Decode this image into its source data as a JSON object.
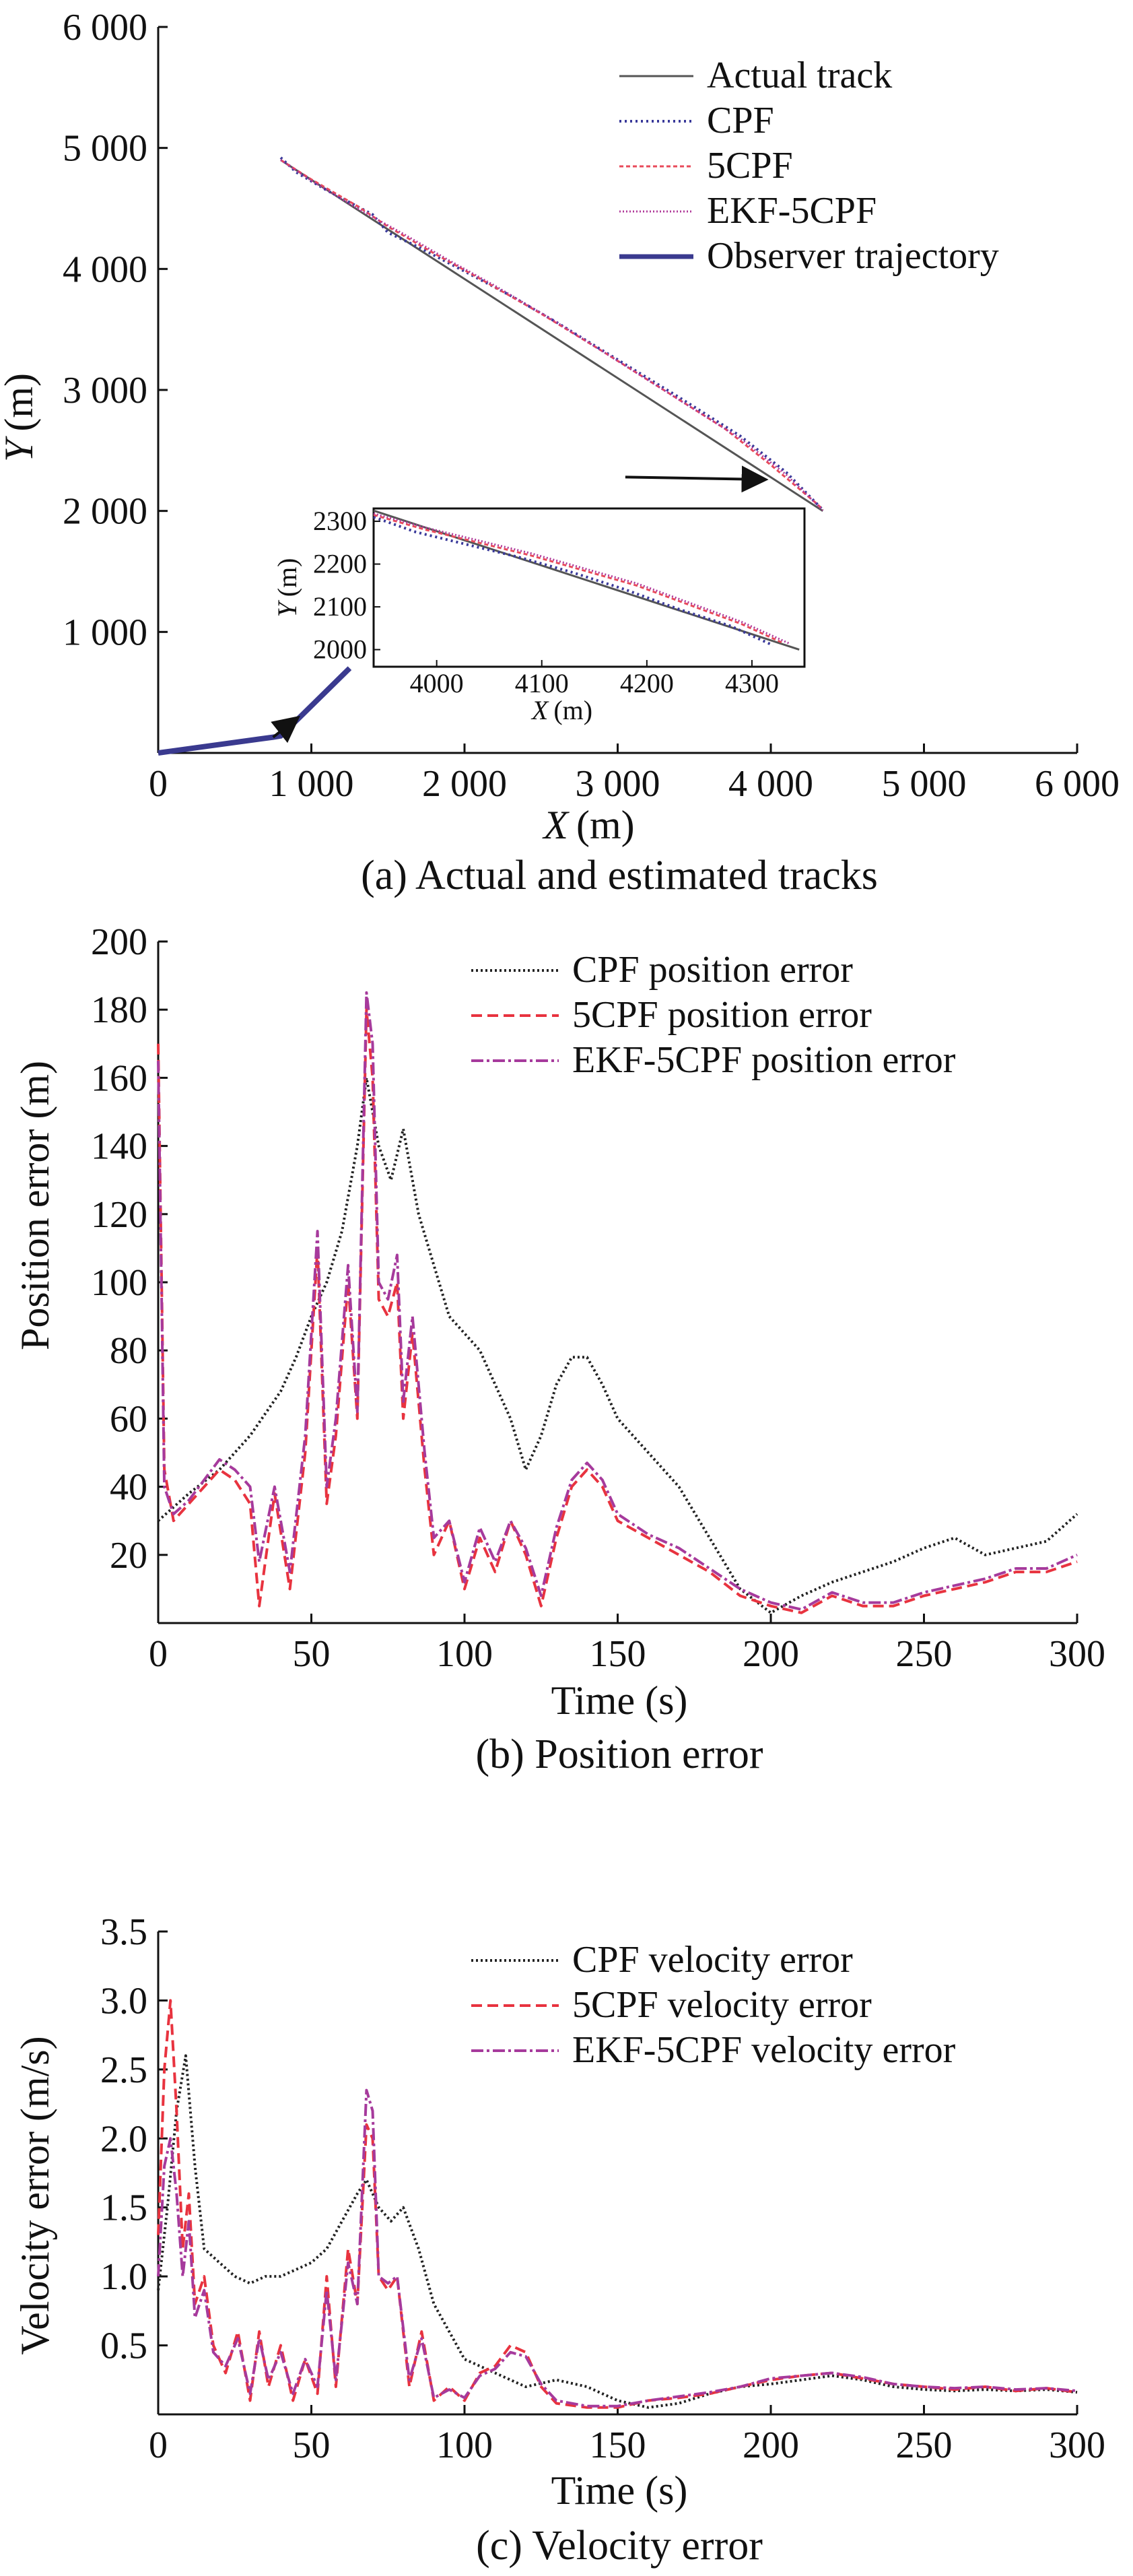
{
  "figure": {
    "panels": [
      "a",
      "b",
      "c"
    ]
  },
  "chart_data": [
    {
      "type": "line",
      "caption": "(a) Actual and estimated tracks",
      "xlabel_var": "X",
      "xlabel_unit": "(m)",
      "ylabel_var": "Y",
      "ylabel_unit": "(m)",
      "xlim": [
        0,
        6000
      ],
      "ylim": [
        0,
        6000
      ],
      "xticks": [
        0,
        1000,
        2000,
        3000,
        4000,
        5000,
        6000
      ],
      "yticks": [
        1000,
        2000,
        3000,
        4000,
        5000,
        6000
      ],
      "xtick_labels": [
        "0",
        "1 000",
        "2 000",
        "3 000",
        "4 000",
        "5 000",
        "6 000"
      ],
      "ytick_labels": [
        "1 000",
        "2 000",
        "3 000",
        "4 000",
        "5 000",
        "6 000"
      ],
      "legend": [
        "Actual track",
        "CPF",
        "5CPF",
        "EKF-5CPF",
        "Observer trajectory"
      ],
      "colors": {
        "actual": "#555555",
        "cpf": "#3a3a9a",
        "fivecpf": "#e84a5a",
        "ekf5cpf": "#b03a9a",
        "observer": "#3a3a8f"
      },
      "series": [
        {
          "name": "Actual track",
          "x": [
            800,
            4340
          ],
          "y": [
            4900,
            2000
          ]
        },
        {
          "name": "CPF",
          "x": [
            800,
            900,
            1100,
            1400,
            1500,
            1700,
            2000,
            2300,
            2600,
            3000,
            3400,
            3800,
            4100,
            4300,
            4340
          ],
          "y": [
            4920,
            4800,
            4650,
            4450,
            4300,
            4180,
            3980,
            3780,
            3560,
            3250,
            2940,
            2620,
            2320,
            2060,
            2010
          ]
        },
        {
          "name": "5CPF",
          "x": [
            800,
            1000,
            1300,
            1500,
            1800,
            2100,
            2500,
            2900,
            3300,
            3700,
            4000,
            4300,
            4340
          ],
          "y": [
            4900,
            4740,
            4520,
            4350,
            4130,
            3920,
            3630,
            3320,
            3000,
            2680,
            2380,
            2060,
            2010
          ]
        },
        {
          "name": "EKF-5CPF",
          "x": [
            800,
            1000,
            1300,
            1600,
            1900,
            2200,
            2600,
            3000,
            3400,
            3800,
            4100,
            4340
          ],
          "y": [
            4900,
            4730,
            4500,
            4290,
            4070,
            3860,
            3560,
            3240,
            2920,
            2600,
            2300,
            2005
          ]
        },
        {
          "name": "Observer trajectory",
          "x": [
            0,
            750,
            800,
            1250
          ],
          "y": [
            0,
            130,
            140,
            700
          ]
        }
      ],
      "inset": {
        "xlim": [
          3940,
          4350
        ],
        "ylim": [
          1960,
          2330
        ],
        "xticks": [
          4000,
          4100,
          4200,
          4300
        ],
        "yticks": [
          2000,
          2100,
          2200,
          2300
        ],
        "xtick_labels": [
          "4000",
          "4100",
          "4200",
          "4300"
        ],
        "ytick_labels": [
          "2000",
          "2100",
          "2200",
          "2300"
        ],
        "xlabel_var": "X",
        "xlabel_unit": "(m)",
        "ylabel_var": "Y",
        "ylabel_unit": "(m)",
        "series": [
          {
            "name": "Actual track",
            "x": [
              3940,
              4345
            ],
            "y": [
              2325,
              2000
            ]
          },
          {
            "name": "CPF",
            "x": [
              3940,
              3980,
              4030,
              4080,
              4130,
              4180,
              4230,
              4280,
              4320
            ],
            "y": [
              2310,
              2275,
              2245,
              2215,
              2180,
              2140,
              2095,
              2055,
              2010
            ]
          },
          {
            "name": "5CPF",
            "x": [
              3940,
              3990,
              4040,
              4090,
              4140,
              4190,
              4240,
              4290,
              4330
            ],
            "y": [
              2315,
              2280,
              2250,
              2220,
              2185,
              2150,
              2105,
              2060,
              2015
            ]
          },
          {
            "name": "EKF-5CPF",
            "x": [
              3940,
              3990,
              4040,
              4090,
              4140,
              4190,
              4240,
              4290,
              4335
            ],
            "y": [
              2318,
              2285,
              2255,
              2225,
              2190,
              2155,
              2110,
              2065,
              2015
            ]
          }
        ]
      },
      "annotations": [
        {
          "kind": "arrow",
          "from": [
            3050,
            2280
          ],
          "to": [
            3950,
            2260
          ]
        },
        {
          "kind": "arrow",
          "from": [
            750,
            130
          ],
          "to": [
            900,
            280
          ]
        }
      ]
    },
    {
      "type": "line",
      "caption": "(b) Position error",
      "xlabel": "Time (s)",
      "ylabel": "Position error (m)",
      "xlim": [
        0,
        300
      ],
      "ylim": [
        0,
        200
      ],
      "xticks": [
        0,
        50,
        100,
        150,
        200,
        250,
        300
      ],
      "yticks": [
        20,
        40,
        60,
        80,
        100,
        120,
        140,
        160,
        180,
        200
      ],
      "legend": [
        "CPF position error",
        "5CPF position error",
        "EKF-5CPF position error"
      ],
      "colors": {
        "cpf": "#222222",
        "fivecpf": "#e8333f",
        "ekf5cpf": "#a63a9c"
      },
      "series": [
        {
          "name": "CPF position error",
          "x": [
            0,
            10,
            20,
            30,
            40,
            45,
            50,
            55,
            60,
            65,
            68,
            72,
            76,
            80,
            85,
            90,
            95,
            100,
            105,
            110,
            115,
            120,
            125,
            130,
            135,
            140,
            145,
            150,
            160,
            170,
            180,
            190,
            200,
            210,
            220,
            230,
            240,
            250,
            260,
            270,
            280,
            290,
            300
          ],
          "y": [
            30,
            38,
            45,
            55,
            68,
            78,
            90,
            100,
            115,
            140,
            160,
            140,
            130,
            145,
            120,
            105,
            90,
            85,
            80,
            70,
            60,
            45,
            55,
            70,
            78,
            78,
            70,
            60,
            50,
            40,
            25,
            10,
            3,
            8,
            12,
            15,
            18,
            22,
            25,
            20,
            22,
            24,
            32
          ]
        },
        {
          "name": "5CPF position error",
          "x": [
            0,
            2,
            5,
            10,
            15,
            20,
            25,
            30,
            33,
            38,
            43,
            48,
            52,
            55,
            58,
            62,
            65,
            68,
            70,
            72,
            75,
            78,
            80,
            83,
            87,
            90,
            95,
            100,
            105,
            110,
            115,
            120,
            125,
            130,
            135,
            140,
            145,
            150,
            160,
            170,
            180,
            190,
            200,
            210,
            220,
            230,
            240,
            250,
            260,
            270,
            280,
            290,
            300
          ],
          "y": [
            170,
            45,
            30,
            35,
            40,
            45,
            42,
            35,
            5,
            38,
            10,
            50,
            110,
            35,
            55,
            100,
            60,
            180,
            160,
            95,
            90,
            100,
            60,
            85,
            45,
            20,
            30,
            10,
            25,
            15,
            30,
            20,
            5,
            25,
            40,
            45,
            40,
            30,
            25,
            20,
            15,
            8,
            5,
            3,
            8,
            5,
            5,
            8,
            10,
            12,
            15,
            15,
            18
          ]
        },
        {
          "name": "EKF-5CPF position error",
          "x": [
            0,
            2,
            5,
            10,
            15,
            20,
            25,
            30,
            33,
            38,
            43,
            48,
            52,
            55,
            58,
            62,
            65,
            68,
            70,
            72,
            75,
            78,
            80,
            83,
            87,
            90,
            95,
            100,
            105,
            110,
            115,
            120,
            125,
            130,
            135,
            140,
            145,
            150,
            160,
            170,
            180,
            190,
            200,
            210,
            220,
            230,
            240,
            250,
            260,
            270,
            280,
            290,
            300
          ],
          "y": [
            165,
            40,
            32,
            36,
            42,
            48,
            45,
            40,
            18,
            40,
            15,
            55,
            115,
            40,
            60,
            105,
            62,
            185,
            170,
            100,
            95,
            108,
            65,
            90,
            50,
            25,
            30,
            12,
            28,
            18,
            30,
            22,
            8,
            28,
            42,
            47,
            42,
            32,
            26,
            22,
            16,
            10,
            6,
            4,
            9,
            6,
            6,
            9,
            11,
            13,
            16,
            16,
            20
          ]
        }
      ]
    },
    {
      "type": "line",
      "caption": "(c) Velocity error",
      "xlabel": "Time (s)",
      "ylabel": "Velocity error (m/s)",
      "xlim": [
        0,
        300
      ],
      "ylim": [
        0,
        3.5
      ],
      "xticks": [
        0,
        50,
        100,
        150,
        200,
        250,
        300
      ],
      "yticks": [
        0.5,
        1.0,
        1.5,
        2.0,
        2.5,
        3.0,
        3.5
      ],
      "legend": [
        "CPF velocity error",
        "5CPF velocity error",
        "EKF-5CPF velocity error"
      ],
      "colors": {
        "cpf": "#222222",
        "fivecpf": "#e8333f",
        "ekf5cpf": "#a63a9c"
      },
      "series": [
        {
          "name": "CPF velocity error",
          "x": [
            0,
            3,
            6,
            9,
            12,
            15,
            20,
            25,
            30,
            35,
            40,
            45,
            50,
            55,
            60,
            65,
            68,
            72,
            76,
            80,
            85,
            90,
            95,
            100,
            105,
            110,
            120,
            130,
            140,
            150,
            160,
            170,
            180,
            190,
            200,
            210,
            220,
            230,
            240,
            250,
            260,
            270,
            280,
            290,
            300
          ],
          "y": [
            0.9,
            1.5,
            2.2,
            2.6,
            1.8,
            1.2,
            1.1,
            1.0,
            0.95,
            1.0,
            1.0,
            1.05,
            1.1,
            1.2,
            1.4,
            1.6,
            1.7,
            1.5,
            1.4,
            1.5,
            1.2,
            0.8,
            0.6,
            0.4,
            0.35,
            0.3,
            0.2,
            0.25,
            0.2,
            0.1,
            0.05,
            0.08,
            0.15,
            0.2,
            0.22,
            0.25,
            0.28,
            0.25,
            0.2,
            0.18,
            0.17,
            0.18,
            0.17,
            0.18,
            0.16
          ]
        },
        {
          "name": "5CPF velocity error",
          "x": [
            0,
            2,
            4,
            6,
            8,
            10,
            12,
            15,
            18,
            22,
            26,
            30,
            33,
            36,
            40,
            44,
            48,
            52,
            55,
            58,
            62,
            65,
            68,
            70,
            72,
            75,
            78,
            82,
            86,
            90,
            95,
            100,
            105,
            110,
            115,
            120,
            125,
            130,
            140,
            150,
            160,
            170,
            180,
            190,
            200,
            210,
            220,
            230,
            240,
            250,
            260,
            270,
            280,
            290,
            300
          ],
          "y": [
            1.3,
            2.5,
            3.0,
            2.2,
            1.2,
            1.6,
            0.8,
            1.0,
            0.5,
            0.3,
            0.6,
            0.1,
            0.6,
            0.2,
            0.5,
            0.1,
            0.4,
            0.15,
            1.0,
            0.2,
            1.2,
            0.8,
            2.1,
            2.0,
            1.0,
            0.9,
            1.0,
            0.2,
            0.6,
            0.1,
            0.2,
            0.1,
            0.3,
            0.35,
            0.5,
            0.45,
            0.2,
            0.08,
            0.05,
            0.05,
            0.1,
            0.12,
            0.15,
            0.2,
            0.25,
            0.28,
            0.3,
            0.26,
            0.22,
            0.2,
            0.18,
            0.2,
            0.17,
            0.19,
            0.16
          ]
        },
        {
          "name": "EKF-5CPF velocity error",
          "x": [
            0,
            2,
            4,
            6,
            8,
            10,
            12,
            15,
            18,
            22,
            26,
            30,
            33,
            36,
            40,
            44,
            48,
            52,
            55,
            58,
            62,
            65,
            68,
            70,
            72,
            75,
            78,
            82,
            86,
            90,
            95,
            100,
            105,
            110,
            115,
            120,
            125,
            130,
            140,
            150,
            160,
            170,
            180,
            190,
            200,
            210,
            220,
            230,
            240,
            250,
            260,
            270,
            280,
            290,
            300
          ],
          "y": [
            1.0,
            1.8,
            2.0,
            1.6,
            1.0,
            1.4,
            0.7,
            0.9,
            0.45,
            0.35,
            0.55,
            0.15,
            0.55,
            0.25,
            0.45,
            0.15,
            0.4,
            0.2,
            0.9,
            0.25,
            1.1,
            0.8,
            2.35,
            2.2,
            1.0,
            0.95,
            1.0,
            0.25,
            0.55,
            0.12,
            0.18,
            0.12,
            0.28,
            0.33,
            0.45,
            0.42,
            0.22,
            0.1,
            0.06,
            0.06,
            0.1,
            0.13,
            0.16,
            0.2,
            0.26,
            0.28,
            0.3,
            0.27,
            0.22,
            0.2,
            0.19,
            0.2,
            0.18,
            0.19,
            0.17
          ]
        }
      ]
    }
  ]
}
